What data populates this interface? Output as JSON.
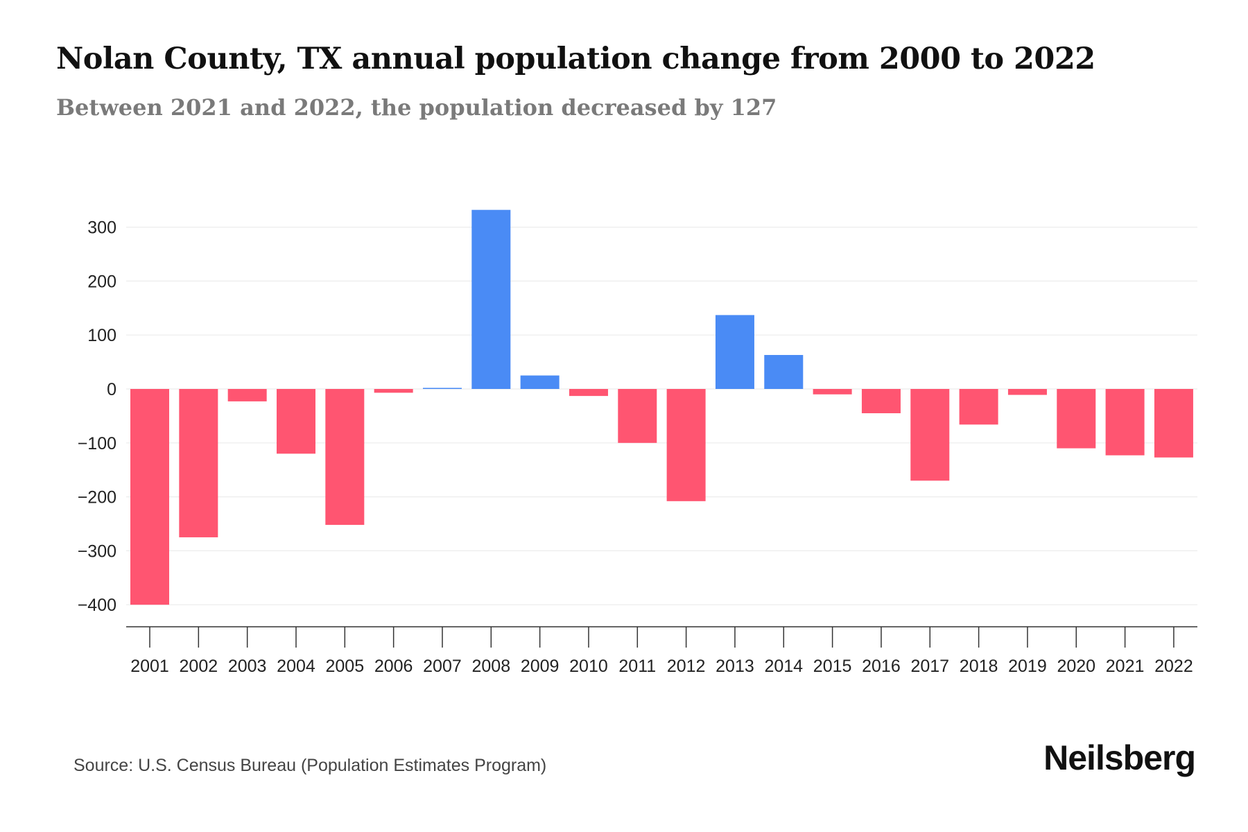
{
  "header": {
    "title": "Nolan County, TX annual population change from 2000 to 2022",
    "subtitle": "Between 2021 and 2022, the population decreased by 127"
  },
  "footer": {
    "source": "Source: U.S. Census Bureau (Population Estimates Program)",
    "brand": "Neilsberg"
  },
  "colors": {
    "positive": "#4a8bf5",
    "negative": "#ff5571",
    "grid": "#ececec",
    "axis": "#333333"
  },
  "chart_data": {
    "type": "bar",
    "title": "Nolan County, TX annual population change from 2000 to 2022",
    "subtitle": "Between 2021 and 2022, the population decreased by 127",
    "xlabel": "",
    "ylabel": "",
    "categories": [
      "2001",
      "2002",
      "2003",
      "2004",
      "2005",
      "2006",
      "2007",
      "2008",
      "2009",
      "2010",
      "2011",
      "2012",
      "2013",
      "2014",
      "2015",
      "2016",
      "2017",
      "2018",
      "2019",
      "2020",
      "2021",
      "2022"
    ],
    "values": [
      -400,
      -275,
      -23,
      -120,
      -252,
      -7,
      2,
      332,
      25,
      -13,
      -100,
      -208,
      137,
      63,
      -10,
      -45,
      -170,
      -66,
      -11,
      -110,
      -123,
      -127
    ],
    "yticks": [
      300,
      200,
      100,
      0,
      -100,
      -200,
      -300,
      -400
    ],
    "ytick_labels": [
      "300",
      "200",
      "100",
      "0",
      "−100",
      "−200",
      "−300",
      "−400"
    ],
    "ylim": [
      -440,
      345
    ],
    "grid": true,
    "legend": "none"
  }
}
